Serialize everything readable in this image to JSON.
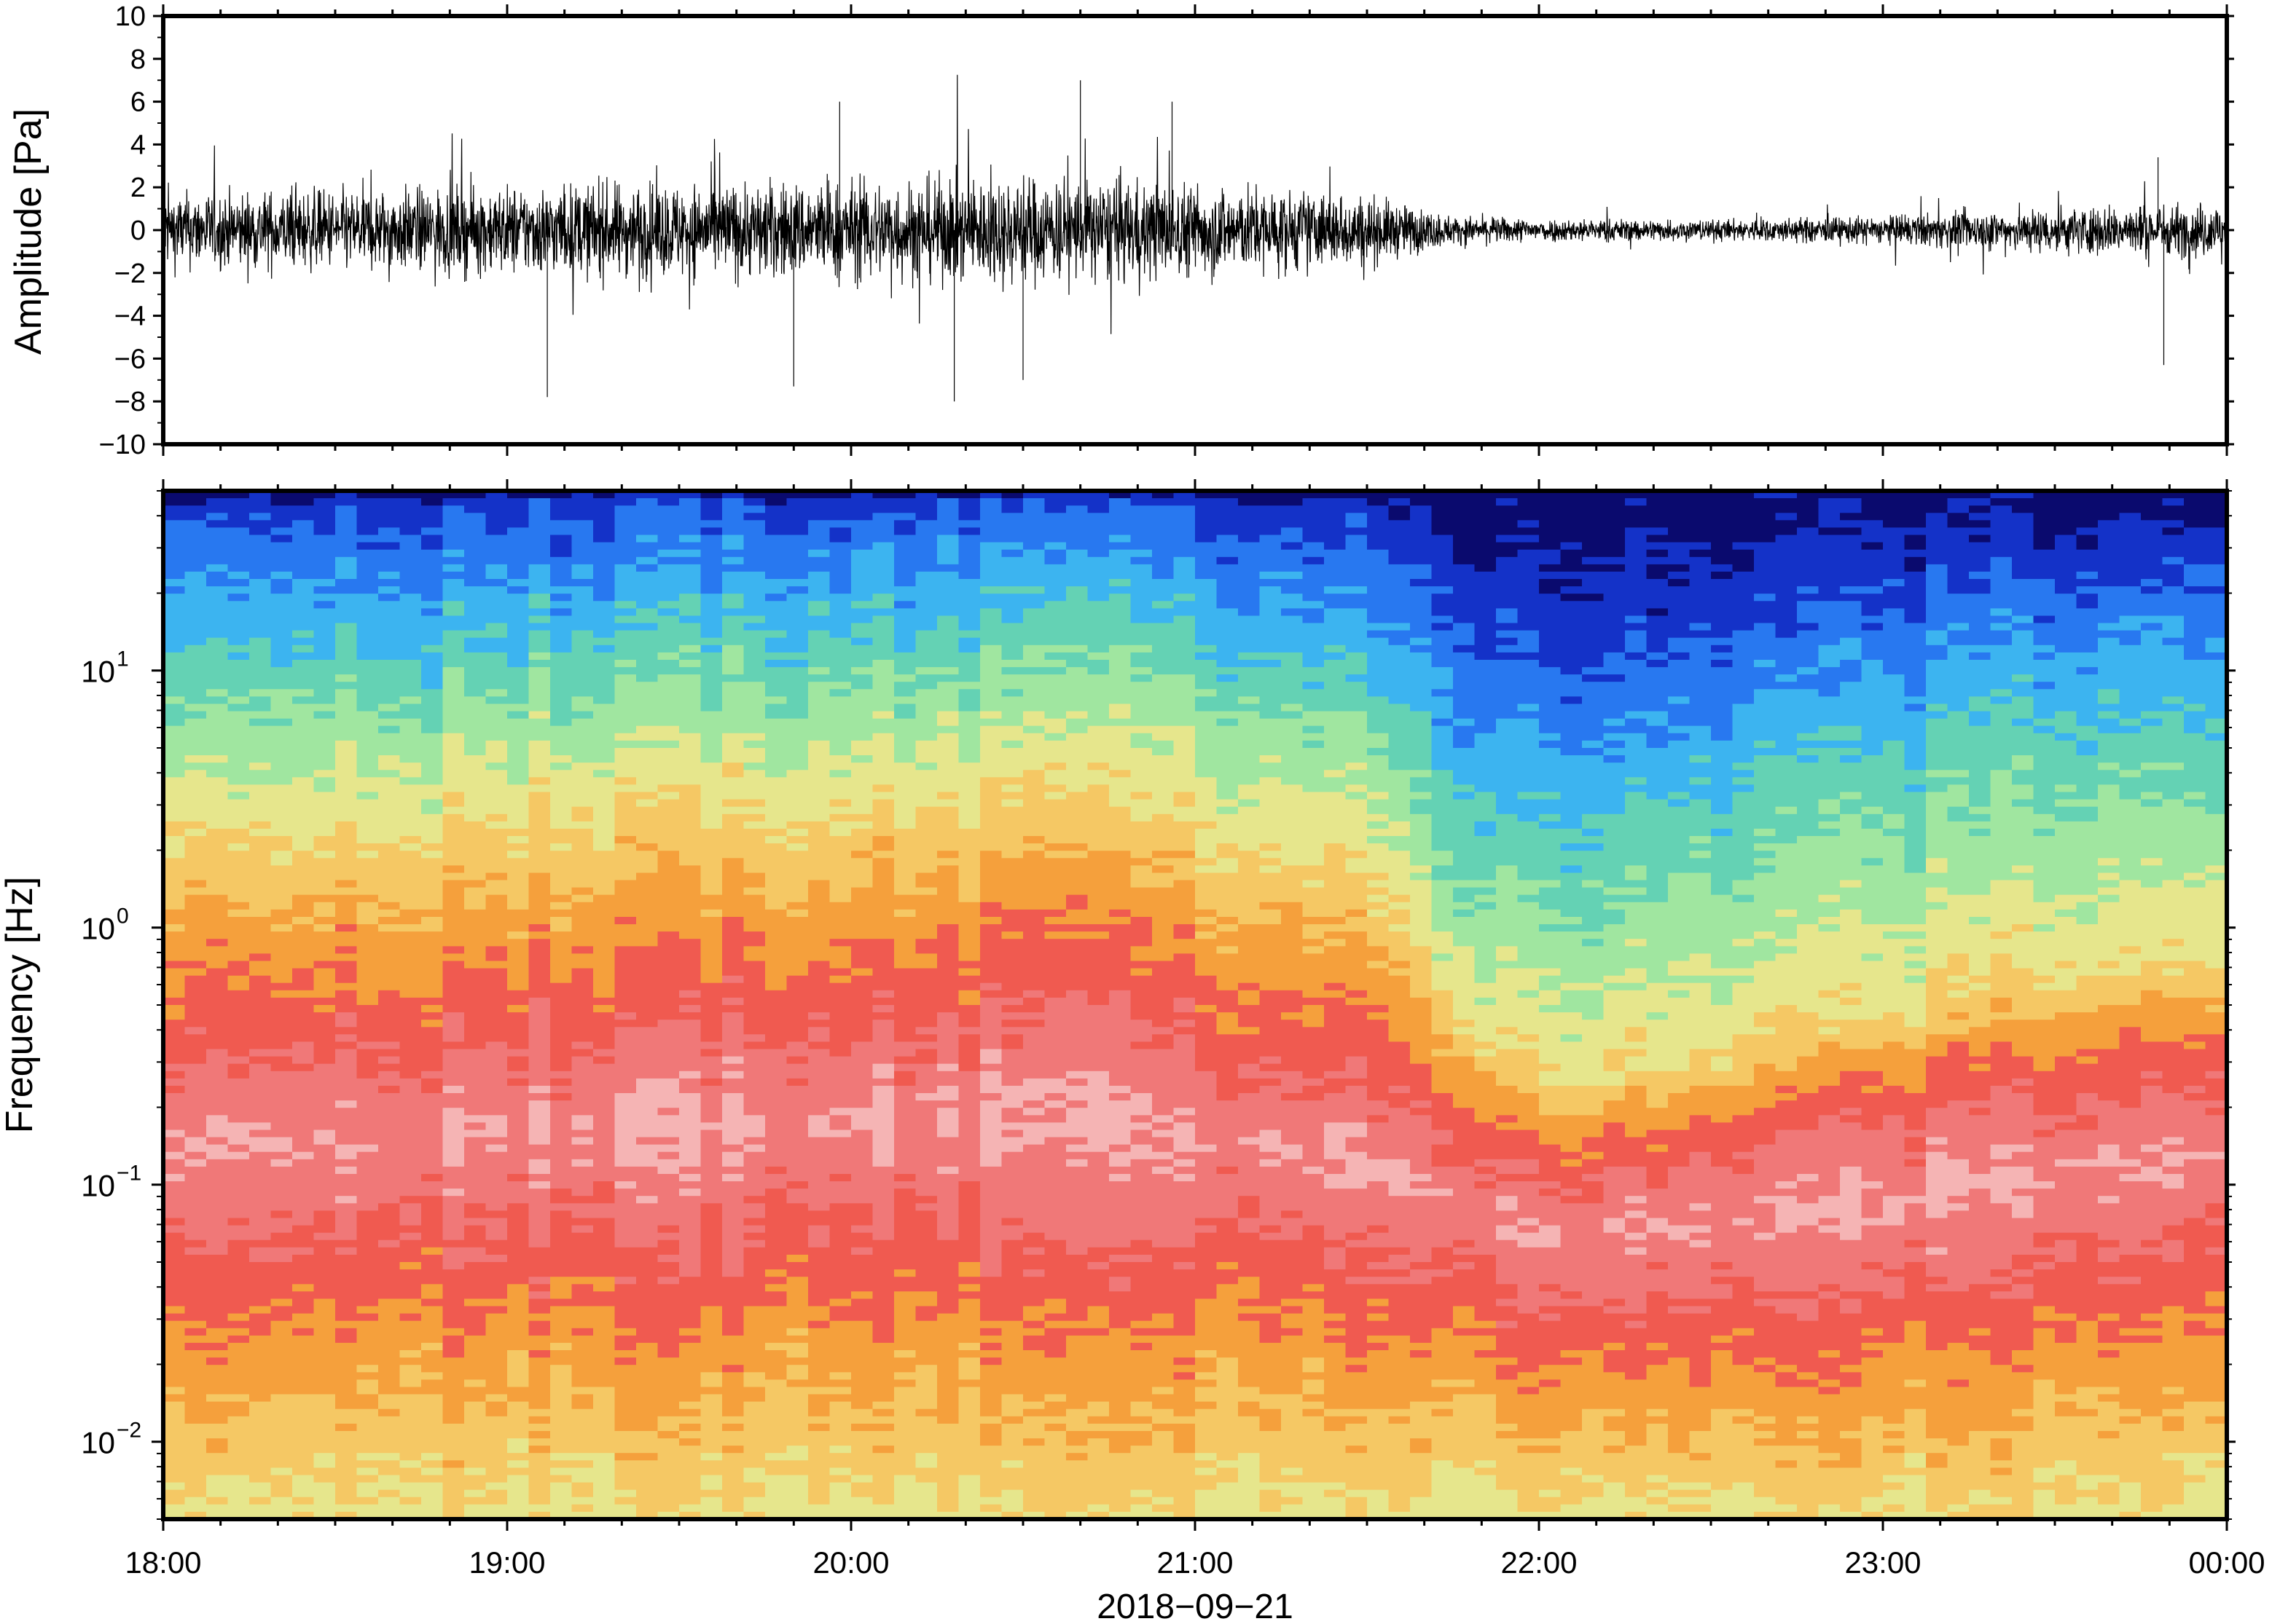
{
  "chart_data": [
    {
      "type": "line",
      "panel": "waveform",
      "ylabel": "Amplitude [Pa]",
      "ylim": [
        -10,
        10
      ],
      "yticks": [
        {
          "value": 10,
          "label": "10"
        },
        {
          "value": 8,
          "label": "8"
        },
        {
          "value": 6,
          "label": "6"
        },
        {
          "value": 4,
          "label": "4"
        },
        {
          "value": 2,
          "label": "2"
        },
        {
          "value": 0,
          "label": "0"
        },
        {
          "value": -2,
          "label": "−2"
        },
        {
          "value": -4,
          "label": "−4"
        },
        {
          "value": -6,
          "label": "−6"
        },
        {
          "value": -8,
          "label": "−8"
        },
        {
          "value": -10,
          "label": "−10"
        }
      ],
      "xlim": [
        "18:00",
        "00:00"
      ],
      "grid": false,
      "line_color": "#000000",
      "envelope": {
        "time": [
          "18:00",
          "18:30",
          "19:00",
          "19:30",
          "20:00",
          "20:30",
          "21:00",
          "21:30",
          "21:45",
          "22:00",
          "22:30",
          "23:00",
          "23:30",
          "00:00"
        ],
        "typical_abs": [
          1.6,
          1.7,
          1.9,
          2.0,
          2.1,
          2.3,
          2.0,
          1.5,
          0.6,
          0.5,
          0.45,
          0.6,
          1.0,
          1.2
        ]
      },
      "peaks": [
        {
          "time": "20:40",
          "value": 7.0
        },
        {
          "time": "19:58",
          "value": 6.0
        },
        {
          "time": "20:56",
          "value": 6.0
        },
        {
          "time": "20:18",
          "value": -8.0
        },
        {
          "time": "19:07",
          "value": -7.8
        },
        {
          "time": "19:50",
          "value": -7.3
        },
        {
          "time": "20:30",
          "value": -7.0
        },
        {
          "time": "23:49",
          "value": -6.3
        },
        {
          "time": "23:48",
          "value": 3.4
        }
      ]
    },
    {
      "type": "heatmap",
      "panel": "spectrogram",
      "ylabel": "Frequency [Hz]",
      "yscale": "log",
      "ylim": [
        0.005,
        50
      ],
      "yticks": [
        {
          "value": 10,
          "base": "10",
          "exp": "1"
        },
        {
          "value": 1,
          "base": "10",
          "exp": "0"
        },
        {
          "value": 0.1,
          "base": "10",
          "exp": "−1"
        },
        {
          "value": 0.01,
          "base": "10",
          "exp": "−2"
        }
      ],
      "xlabel": "2018−09−21",
      "xticks": [
        "18:00",
        "19:00",
        "20:00",
        "21:00",
        "22:00",
        "23:00",
        "00:00"
      ],
      "grid": false,
      "colorscale": [
        "#0a0a6e",
        "#1432c8",
        "#2878f0",
        "#3cb4f0",
        "#64d2b4",
        "#a0e6a0",
        "#e6e68c",
        "#f5c864",
        "#f5a03c",
        "#f05a50",
        "#f07878",
        "#f5b4b4"
      ],
      "band_edges_log10_hz": [
        {
          "time": "18:00",
          "dark": 1.62,
          "blue": 1.2,
          "green": 0.85,
          "yellow": 0.35,
          "red": -0.45,
          "pink": -0.85,
          "orange": -1.65
        },
        {
          "time": "19:00",
          "dark": 1.64,
          "blue": 1.25,
          "green": 0.9,
          "yellow": 0.4,
          "red": -0.4,
          "pink": -0.8,
          "orange": -1.6
        },
        {
          "time": "20:00",
          "dark": 1.65,
          "blue": 1.3,
          "green": 0.95,
          "yellow": 0.45,
          "red": -0.3,
          "pink": -0.75,
          "orange": -1.6
        },
        {
          "time": "20:30",
          "dark": 1.66,
          "blue": 1.35,
          "green": 1.0,
          "yellow": 0.5,
          "red": -0.25,
          "pink": -0.75,
          "orange": -1.6
        },
        {
          "time": "21:00",
          "dark": 1.64,
          "blue": 1.25,
          "green": 0.95,
          "yellow": 0.4,
          "red": -0.4,
          "pink": -0.8,
          "orange": -1.62
        },
        {
          "time": "21:30",
          "dark": 1.6,
          "blue": 1.1,
          "green": 0.8,
          "yellow": 0.2,
          "red": -0.55,
          "pink": -0.9,
          "orange": -1.65
        },
        {
          "time": "21:45",
          "dark": 1.35,
          "blue": 0.8,
          "green": 0.3,
          "yellow": -0.3,
          "red": -0.75,
          "pink": -1.05,
          "orange": -1.75
        },
        {
          "time": "22:00",
          "dark": 1.1,
          "blue": 0.6,
          "green": 0.1,
          "yellow": -0.6,
          "red": -0.95,
          "pink": -1.2,
          "orange": -1.8
        },
        {
          "time": "22:30",
          "dark": 1.2,
          "blue": 0.7,
          "green": 0.2,
          "yellow": -0.5,
          "red": -0.85,
          "pink": -1.15,
          "orange": -1.78
        },
        {
          "time": "23:00",
          "dark": 1.3,
          "blue": 0.85,
          "green": 0.35,
          "yellow": -0.35,
          "red": -0.7,
          "pink": -1.05,
          "orange": -1.7
        },
        {
          "time": "23:30",
          "dark": 1.4,
          "blue": 1.0,
          "green": 0.5,
          "yellow": -0.2,
          "red": -0.6,
          "pink": -0.95,
          "orange": -1.68
        },
        {
          "time": "00:00",
          "dark": 1.5,
          "blue": 1.05,
          "green": 0.6,
          "yellow": -0.1,
          "red": -0.5,
          "pink": -0.9,
          "orange": -1.65
        }
      ]
    }
  ]
}
